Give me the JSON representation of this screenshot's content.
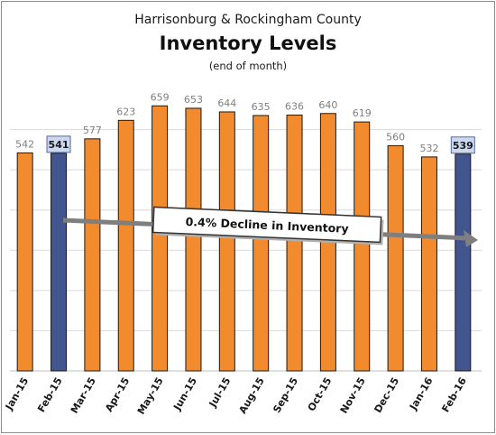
{
  "chart_data": {
    "type": "bar",
    "title": "Harrisonburg & Rockingham County",
    "subtitle": "Inventory Levels",
    "note": "(end of month)",
    "categories": [
      "Jan-15",
      "Feb-15",
      "Mar-15",
      "Apr-15",
      "May-15",
      "Jun-15",
      "Jul-15",
      "Aug-15",
      "Sep-15",
      "Oct-15",
      "Nov-15",
      "Dec-15",
      "Jan-16",
      "Feb-16"
    ],
    "values": [
      542,
      541,
      577,
      623,
      659,
      653,
      644,
      635,
      636,
      640,
      619,
      560,
      532,
      539
    ],
    "highlighted_categories": [
      "Feb-15",
      "Feb-16"
    ],
    "annotation": "0.4% Decline in Inventory",
    "ylim": [
      0,
      690
    ],
    "grid": true,
    "colors": {
      "bar": "#f28a2e",
      "highlight_bar": "#43558f",
      "label": "#7f7f7f",
      "highlight_label_bg": "#ccd7f0",
      "gridline": "#d9d9d9",
      "arrow": "#7f7f7f"
    }
  }
}
